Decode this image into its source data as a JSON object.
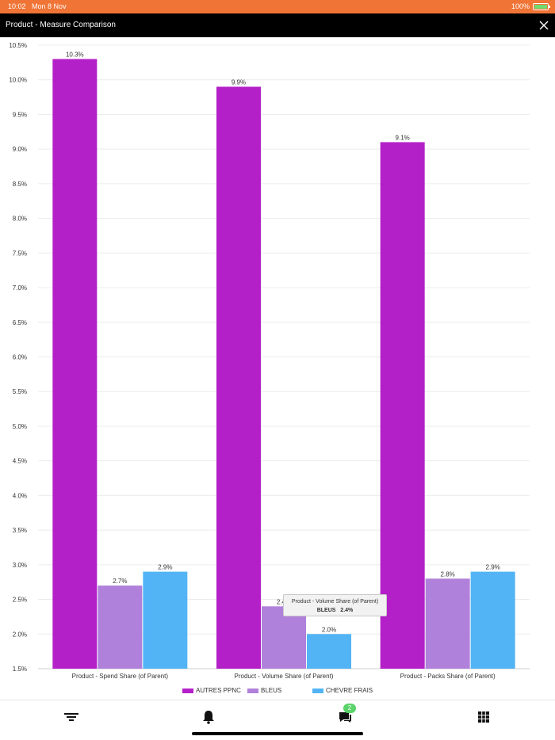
{
  "status_bar": {
    "time": "10:02",
    "date": "Mon 8 Nov",
    "battery": "100%",
    "battery_color": "#6fdc6f"
  },
  "header": {
    "title": "Product - Measure Comparison",
    "close_icon": "close-icon"
  },
  "colors": {
    "autres_ppnc": "#b420c8",
    "bleus": "#b081db",
    "chevre_frais": "#52b4f5",
    "status_bar": "#f07435",
    "header": "#000000"
  },
  "chart_data": {
    "type": "bar",
    "categories": [
      "Product - Spend Share (of Parent)",
      "Product - Volume Share (of Parent)",
      "Product - Packs Share (of Parent)"
    ],
    "series": [
      {
        "name": "AUTRES PPNC",
        "values": [
          10.3,
          9.9,
          9.1
        ],
        "labels": [
          "10.3%",
          "9.9%",
          "9.1%"
        ]
      },
      {
        "name": "BLEUS",
        "values": [
          2.7,
          2.4,
          2.8
        ],
        "labels": [
          "2.7%",
          "2.4%",
          "2.8%"
        ]
      },
      {
        "name": "CHEVRE FRAIS",
        "values": [
          2.9,
          2.0,
          2.9
        ],
        "labels": [
          "2.9%",
          "2.0%",
          "2.9%"
        ]
      }
    ],
    "yticks": [
      "1.5%",
      "2.0%",
      "2.5%",
      "3.0%",
      "3.5%",
      "4.0%",
      "4.5%",
      "5.0%",
      "5.5%",
      "6.0%",
      "6.5%",
      "7.0%",
      "7.5%",
      "8.0%",
      "8.5%",
      "9.0%",
      "9.5%",
      "10.0%",
      "10.5%"
    ],
    "ylim": [
      1.5,
      10.5
    ],
    "grid": true,
    "legend_position": "bottom"
  },
  "tooltip": {
    "title": "Product - Volume Share (of Parent)",
    "series": "BLEUS",
    "value": "2.4%"
  },
  "bottom_tabs": [
    {
      "icon": "filter-icon"
    },
    {
      "icon": "bell-icon"
    },
    {
      "icon": "chat-icon",
      "badge": "2"
    },
    {
      "icon": "grid-icon"
    }
  ]
}
